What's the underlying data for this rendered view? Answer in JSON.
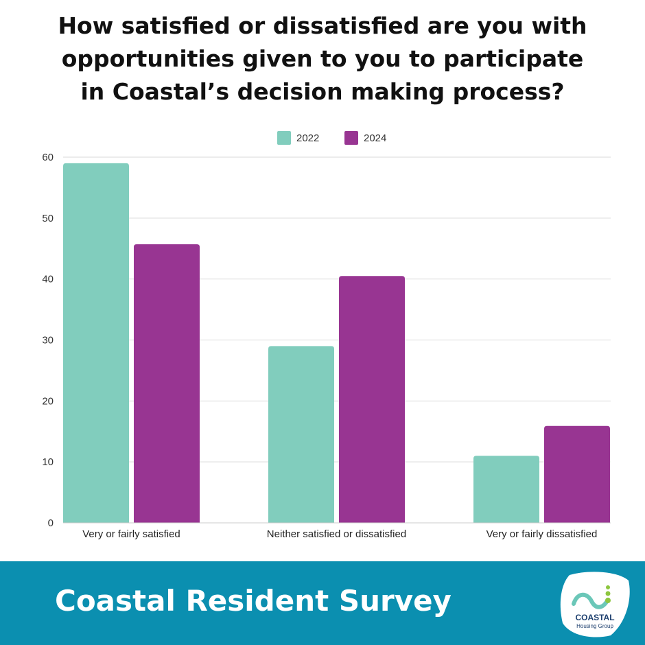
{
  "title_lines": [
    "How satisfied or dissatisfied are you with",
    "opportunities given to you to participate",
    "in Coastal’s decision making process?"
  ],
  "footer": {
    "title": "Coastal Resident Survey",
    "logo_text": "COASTAL",
    "logo_subtext": "Housing Group"
  },
  "colors": {
    "series_2022": "#81cdbd",
    "series_2024": "#983592",
    "footer_bg": "#0b8fb0"
  },
  "chart_data": {
    "type": "bar",
    "title": "How satisfied or dissatisfied are you with opportunities given to you to participate in Coastal’s decision making process?",
    "categories": [
      "Very or fairly satisfied",
      "Neither satisfied or dissatisfied",
      "Very or fairly dissatisfied"
    ],
    "series": [
      {
        "name": "2022",
        "values": [
          59,
          29,
          11
        ]
      },
      {
        "name": "2024",
        "values": [
          45.7,
          40.5,
          15.9
        ]
      }
    ],
    "ylim": [
      0,
      60
    ],
    "yticks": [
      "0",
      "10",
      "20",
      "30",
      "40",
      "50",
      "60"
    ],
    "grid": true,
    "legend": "top-center"
  }
}
